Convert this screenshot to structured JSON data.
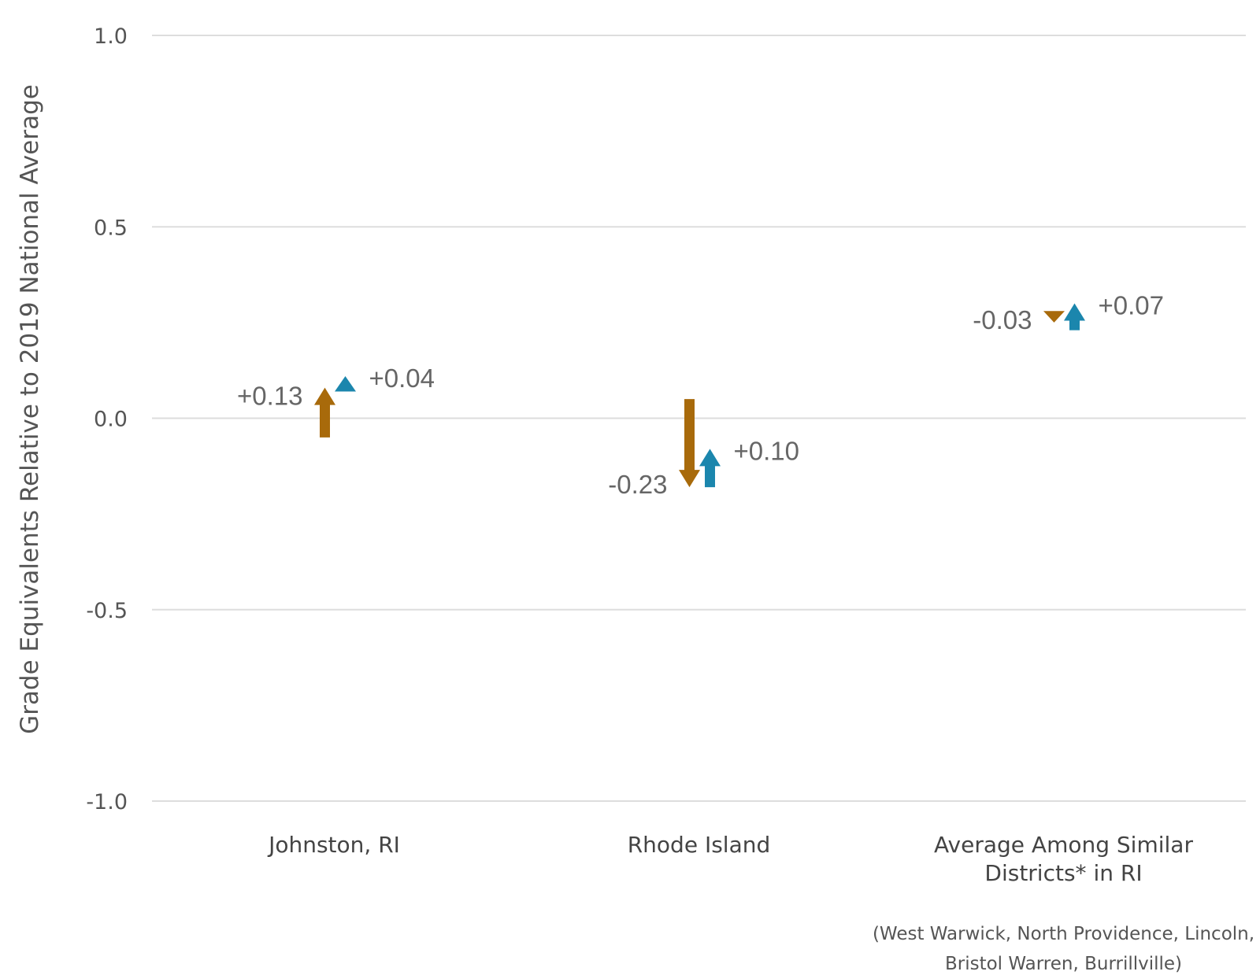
{
  "chart_data": {
    "type": "arrow",
    "ylabel": "Grade Equivalents Relative to 2019 National Average",
    "ylim": [
      -1.0,
      1.0
    ],
    "y_ticks": [
      "1.0",
      "0.5",
      "0.0",
      "-0.5",
      "-1.0"
    ],
    "y_tick_values": [
      1.0,
      0.5,
      0.0,
      -0.5,
      -1.0
    ],
    "grid": true,
    "categories": [
      [
        "Johnston, RI"
      ],
      [
        "Rhode Island"
      ],
      [
        "Average Among Similar",
        "Districts* in RI"
      ]
    ],
    "footnote": [
      "(West Warwick, North Providence, Lincoln,",
      "Bristol Warren, Burrillville)"
    ],
    "series": [
      {
        "color": "#a86a0b",
        "points": [
          {
            "start": -0.05,
            "end": 0.08,
            "label": "+0.13"
          },
          {
            "start": 0.05,
            "end": -0.18,
            "label": "-0.23"
          },
          {
            "start": 0.28,
            "end": 0.25,
            "label": "-0.03"
          }
        ]
      },
      {
        "color": "#1b86ad",
        "points": [
          {
            "start": 0.07,
            "end": 0.11,
            "label": "+0.04"
          },
          {
            "start": -0.18,
            "end": -0.08,
            "label": "+0.10"
          },
          {
            "start": 0.23,
            "end": 0.3,
            "label": "+0.07"
          }
        ]
      }
    ]
  }
}
